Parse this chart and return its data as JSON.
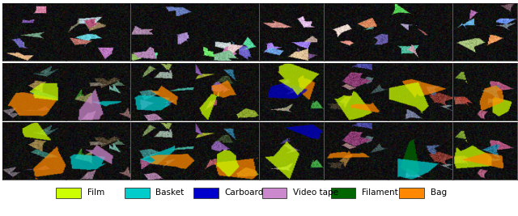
{
  "legend_items": [
    {
      "label": "Film",
      "color": "#ccff00"
    },
    {
      "label": "Basket",
      "color": "#00cccc"
    },
    {
      "label": "Carboard",
      "color": "#0000cc"
    },
    {
      "label": "Video tape",
      "color": "#cc88cc"
    },
    {
      "label": "Filament",
      "color": "#006600"
    },
    {
      "label": "Bag",
      "color": "#ff8800"
    }
  ],
  "n_rows": 3,
  "n_cols": 8,
  "legend_fontsize": 7.5
}
